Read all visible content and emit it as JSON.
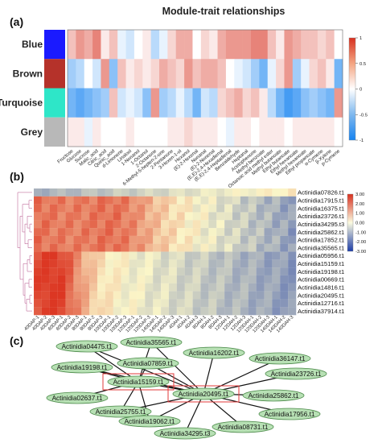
{
  "panel_labels": [
    "(a)",
    "(b)",
    "(c)"
  ],
  "chart_data": [
    {
      "type": "heatmap",
      "title": "Module-trait relationships",
      "modules": [
        {
          "name": "Blue",
          "color": "#1a1aff"
        },
        {
          "name": "Brown",
          "color": "#b5322a"
        },
        {
          "name": "Turquoise",
          "color": "#2ee6c8"
        },
        {
          "name": "Grey",
          "color": "#b8b8b8"
        }
      ],
      "traits": [
        "Fructose",
        "Glucose",
        "Sucrose",
        "Malic_acid",
        "Citric_acid",
        "Quinic_acid",
        "d-Limonene",
        "Linalool",
        "1-Nonanol",
        "1-Octanol",
        "2-Octanone",
        "6-Methyl-5-hepten-2-one",
        "2-Pentanone",
        "3-Hexen-1-ol",
        "Hexanol",
        "(E)-2-Hexenal",
        "Nonanal",
        "(E)-2-Nonenal",
        "(E,E)-2,4-Hexadienal",
        "(E,E)-2,4-Heptadienal",
        "Benzaldehyde",
        "Heptanal",
        "Acetophenone",
        "Methyl benzoate",
        "Octanoic acid methyl ester",
        "Methyl butanoate",
        "Ethyl butanoate",
        "Ethyl hexanoate",
        "Methyl hexanoate",
        "Ethyl propanoate",
        "α-Cymene",
        "β-Xylene",
        "p-Cymene"
      ],
      "values": [
        [
          0.3,
          0.5,
          0.4,
          0.6,
          0.1,
          0.3,
          -0.1,
          -0.2,
          0.0,
          0.1,
          -0.3,
          -0.1,
          0.2,
          0.4,
          0.4,
          0.0,
          0.2,
          0.1,
          0.4,
          0.5,
          0.5,
          0.5,
          0.6,
          0.6,
          0.3,
          0.1,
          0.5,
          0.4,
          0.3,
          0.3,
          0.2,
          0.3,
          0.0
        ],
        [
          -0.4,
          -0.3,
          0.0,
          -0.2,
          0.5,
          -0.5,
          0.3,
          0.1,
          0.2,
          0.1,
          0.2,
          0.4,
          0.3,
          0.2,
          0.5,
          0.3,
          0.4,
          0.4,
          0.3,
          0.0,
          -0.1,
          -0.2,
          -0.4,
          -0.6,
          -0.1,
          0.2,
          0.5,
          -0.4,
          -0.1,
          0.2,
          0.3,
          0.1,
          -0.6
        ],
        [
          -0.6,
          -0.7,
          -0.6,
          -0.5,
          -0.4,
          0.3,
          -0.2,
          -0.1,
          -0.2,
          -0.5,
          0.5,
          -0.4,
          -0.3,
          -0.1,
          -0.3,
          -0.6,
          -0.2,
          -0.3,
          0.2,
          0.3,
          0.4,
          0.2,
          0.3,
          0.1,
          -0.3,
          -0.6,
          -0.8,
          -0.7,
          -0.5,
          -0.4,
          -0.5,
          -0.6,
          0.5
        ],
        [
          0.1,
          0.1,
          -0.1,
          0.1,
          0.0,
          0.0,
          0.0,
          0.1,
          0.0,
          0.0,
          0.0,
          0.0,
          0.1,
          0.1,
          0.2,
          0.1,
          0.1,
          0.1,
          0.0,
          -0.1,
          0.1,
          0.1,
          0.0,
          0.1,
          0.1,
          0.1,
          0.0,
          0.1,
          0.1,
          0.1,
          0.1,
          0.1,
          0.0
        ]
      ],
      "colorbar": {
        "ticks": [
          "1",
          "0.5",
          "0",
          "-0.5",
          "-1"
        ],
        "range": [
          -1,
          1
        ]
      }
    },
    {
      "type": "heatmap",
      "rows": [
        "Actinidia07826.t1",
        "Actinidia17915.t1",
        "Actinidia16375.t1",
        "Actinidia23726.t1",
        "Actinidia34295.t3",
        "Actinidia25862.t1",
        "Actinidia17852.t1",
        "Actinidia35565.t1",
        "Actinidia05956.t1",
        "Actinidia15159.t1",
        "Actinidia19198.t1",
        "Actinidia00669.t1",
        "Actinidia14816.t1",
        "Actinidia20495.t1",
        "Actinidia12716.t1",
        "Actinidia37914.t1"
      ],
      "columns": [
        "40DAP-1",
        "40DAP-2",
        "40DAP-3",
        "60DAP-1",
        "60DAP-2",
        "60DAP-3",
        "80DAP-1",
        "80DAP-2",
        "80DAP-3",
        "100DAP-1",
        "100DAP-2",
        "100DAP-3",
        "120DAP-1",
        "120DAP-2",
        "120DAP-3",
        "140DAP-1",
        "140DAP-2",
        "140DAP-3",
        "4DAH-1",
        "4DAH-2",
        "4DAH-3",
        "8DAH-1",
        "8DAH-2",
        "8DAH-3",
        "12DAH-1",
        "12DAH-2",
        "12DAH-3",
        "120DAH-1",
        "120DAH-2",
        "120DAH-3",
        "140DAH-1",
        "140DAH-2",
        "140DAH-3"
      ],
      "colorbar": {
        "ticks": [
          "3.00",
          "2.00",
          "1.00",
          "0.00",
          "-1.00",
          "-2.00",
          "-3.00"
        ],
        "range": [
          -3,
          3
        ]
      }
    }
  ],
  "network": {
    "nodes": [
      {
        "id": "Actinidia04475.t1"
      },
      {
        "id": "Actinidia35565.t1"
      },
      {
        "id": "Actinidia16202.t1"
      },
      {
        "id": "Actinidia07859.t1"
      },
      {
        "id": "Actinidia36147.t1"
      },
      {
        "id": "Actinidia19198.t1"
      },
      {
        "id": "Actinidia23726.t1"
      },
      {
        "id": "Actinidia15159.t1"
      },
      {
        "id": "Actinidia02637.t1"
      },
      {
        "id": "Actinidia20495.t1"
      },
      {
        "id": "Actinidia25862.t1"
      },
      {
        "id": "Actinidia25755.t1"
      },
      {
        "id": "Actinidia17956.t1"
      },
      {
        "id": "Actinidia19062.t1"
      },
      {
        "id": "Actinidia08731.t1"
      },
      {
        "id": "Actinidia34295.t3"
      }
    ],
    "hubs": [
      "Actinidia15159.t1",
      "Actinidia20495.t1"
    ],
    "node_color": "#b7e0b4",
    "hub_box_color": "#e0393a"
  }
}
